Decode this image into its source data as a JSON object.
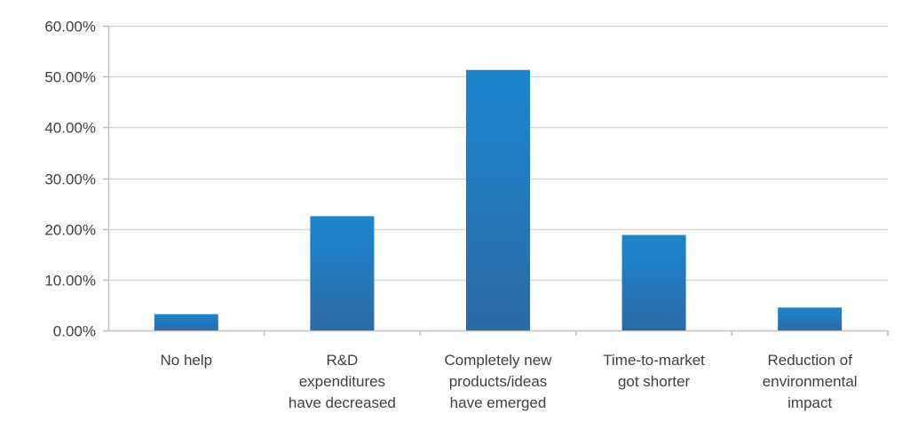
{
  "chart_data": {
    "type": "bar",
    "categories": [
      [
        "No help"
      ],
      [
        "R&D",
        "expenditures",
        "have decreased"
      ],
      [
        "Completely new",
        "products/ideas",
        "have emerged"
      ],
      [
        "Time-to-market",
        "got shorter"
      ],
      [
        "Reduction of",
        "environmental",
        "impact"
      ]
    ],
    "values": [
      3.2,
      22.5,
      51.3,
      18.8,
      4.5
    ],
    "ylim": [
      0,
      60
    ],
    "yticks": [
      "0.00%",
      "10.00%",
      "20.00%",
      "30.00%",
      "40.00%",
      "50.00%",
      "60.00%"
    ],
    "grid": true,
    "legend": "none",
    "colors": {
      "bar_top": "#1a86cf",
      "bar_bottom": "#2c6aa6",
      "grid": "#d9d9d9",
      "axis": "#bfbfbf",
      "text": "#404040"
    }
  }
}
